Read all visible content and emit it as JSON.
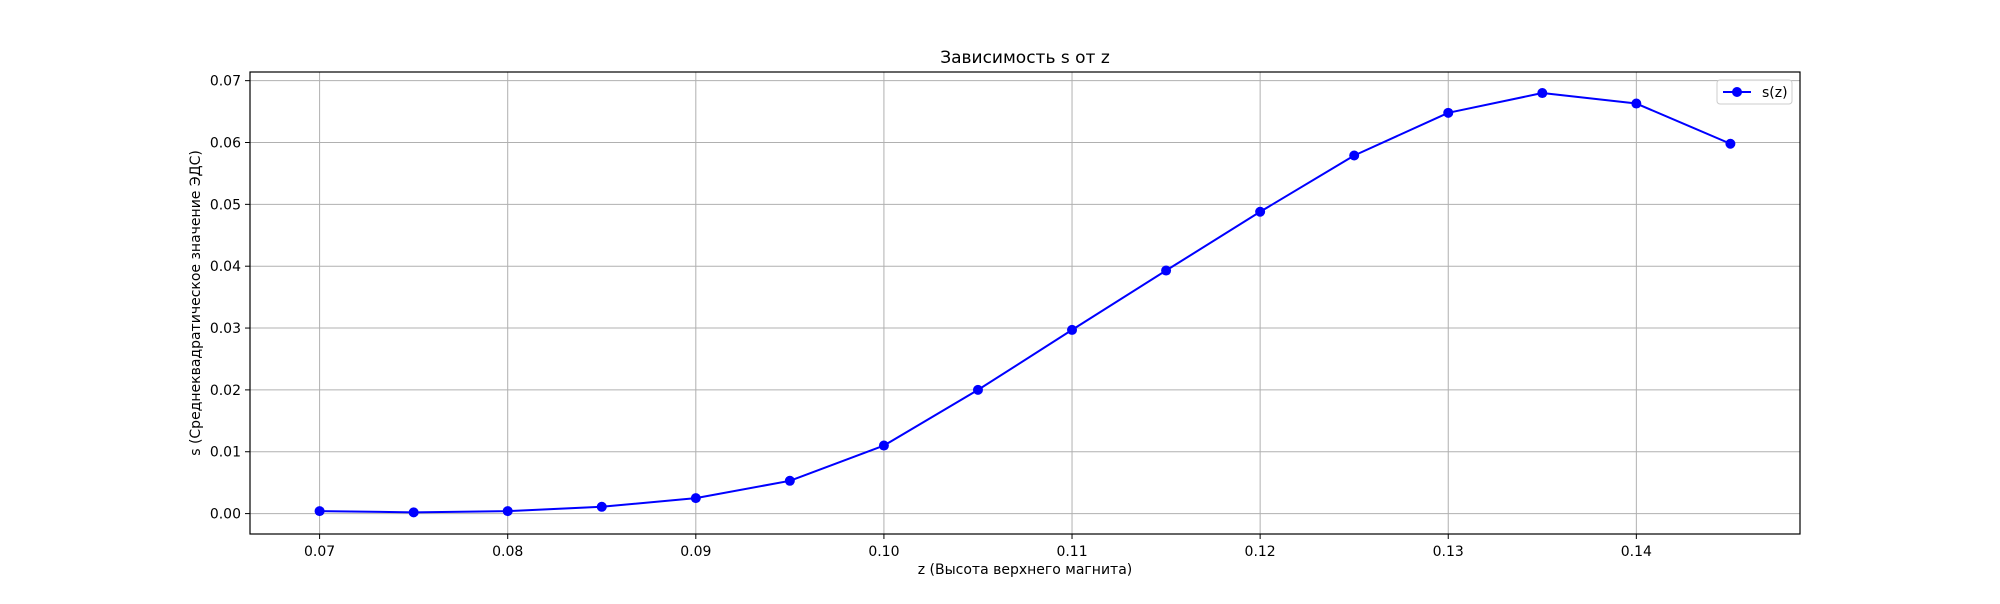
{
  "chart_data": {
    "type": "line",
    "title": "Зависимость s от z",
    "xlabel": "z (Высота верхнего магнита)",
    "ylabel": "s (Среднеквадратическое значение ЭДС)",
    "xlim": [
      0.0663,
      0.1487
    ],
    "ylim": [
      -0.0033,
      0.0714
    ],
    "xticks": [
      "0.07",
      "0.08",
      "0.09",
      "0.10",
      "0.11",
      "0.12",
      "0.13",
      "0.14"
    ],
    "xtick_values": [
      0.07,
      0.08,
      0.09,
      0.1,
      0.11,
      0.12,
      0.13,
      0.14
    ],
    "yticks": [
      "0.00",
      "0.01",
      "0.02",
      "0.03",
      "0.04",
      "0.05",
      "0.06",
      "0.07"
    ],
    "ytick_values": [
      0.0,
      0.01,
      0.02,
      0.03,
      0.04,
      0.05,
      0.06,
      0.07
    ],
    "grid": true,
    "legend_position": "top-right",
    "series": [
      {
        "name": "s(z)",
        "color": "#0000ff",
        "marker": "circle",
        "x": [
          0.07,
          0.075,
          0.08,
          0.085,
          0.09,
          0.095,
          0.1,
          0.105,
          0.11,
          0.115,
          0.12,
          0.125,
          0.13,
          0.135,
          0.14,
          0.145
        ],
        "y": [
          0.0004,
          0.0002,
          0.0004,
          0.0011,
          0.0025,
          0.0053,
          0.011,
          0.02,
          0.0297,
          0.0393,
          0.0488,
          0.0579,
          0.0648,
          0.068,
          0.0663,
          0.0598
        ]
      }
    ]
  }
}
